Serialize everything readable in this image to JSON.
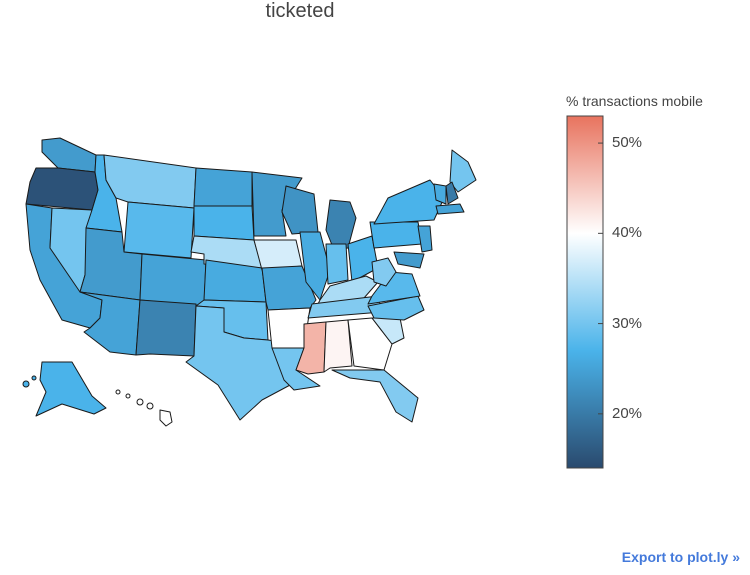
{
  "title": "ticketed",
  "colorbar": {
    "title": "% transactions mobile",
    "ticks": [
      {
        "label": "50%",
        "value": 50
      },
      {
        "label": "40%",
        "value": 40
      },
      {
        "label": "30%",
        "value": 30
      },
      {
        "label": "20%",
        "value": 20
      }
    ],
    "range": [
      14,
      53
    ],
    "colorscale": [
      "#2a4a6e",
      "#4ab3ea",
      "#ffffff",
      "#e8735e"
    ]
  },
  "export_label": "Export to plot.ly »",
  "chart_data": {
    "type": "choropleth",
    "scope": "usa",
    "title": "ticketed",
    "colorbar_title": "% transactions mobile",
    "values": {
      "WA": 24,
      "OR": 15,
      "CA": 25,
      "NV": 30,
      "ID": 27,
      "MT": 31,
      "WY": 28,
      "UT": 24,
      "AZ": 25,
      "CO": 25,
      "NM": 21,
      "ND": 25,
      "SD": 27,
      "NE": 34,
      "KS": 26,
      "OK": 29,
      "TX": 30,
      "MN": 24,
      "IA": 37,
      "MO": 25,
      "AR": 40,
      "LA": 30,
      "WI": 23,
      "IL": 26,
      "MI": 21,
      "IN": 29,
      "OH": 27,
      "KY": 34,
      "TN": 31,
      "MS": 47,
      "AL": 41,
      "GA": 40,
      "FL": 31,
      "SC": 36,
      "NC": 29,
      "VA": 28,
      "WV": 31,
      "PA": 27,
      "NY": 27,
      "ME": 30,
      "NH": 20,
      "VT": 26,
      "MA": 25,
      "NJ": 25,
      "MD": 24,
      "AK": 27,
      "HI": 40
    }
  }
}
